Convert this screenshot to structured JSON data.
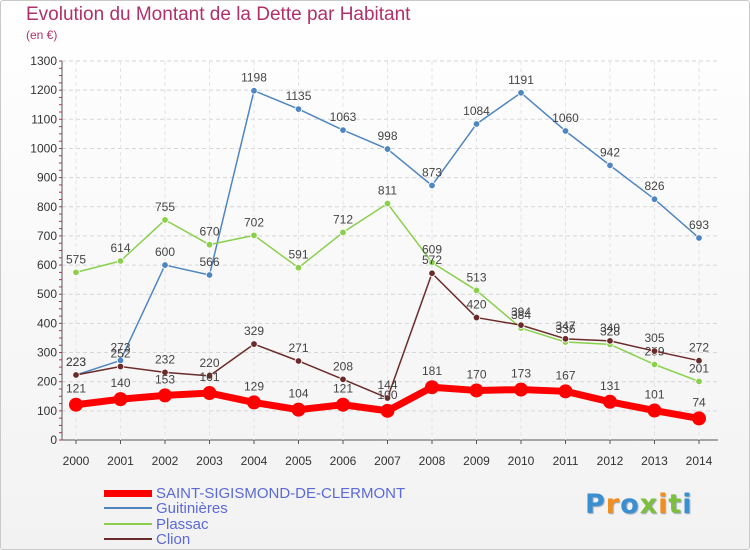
{
  "chart_data": {
    "type": "line",
    "title": "Evolution du Montant de la Dette par Habitant",
    "unit_label": "(en €)",
    "xlabel": "",
    "ylabel": "",
    "ylim": [
      0,
      1300
    ],
    "y_ticks": [
      0,
      100,
      200,
      300,
      400,
      500,
      600,
      700,
      800,
      900,
      1000,
      1100,
      1200,
      1300
    ],
    "categories": [
      "2000",
      "2001",
      "2002",
      "2003",
      "2004",
      "2005",
      "2006",
      "2007",
      "2008",
      "2009",
      "2010",
      "2011",
      "2012",
      "2013",
      "2014"
    ],
    "grid": true,
    "legend_position": "bottom-left",
    "series": [
      {
        "name": "Guitinières",
        "color": "#4f86c0",
        "values": [
          223,
          273,
          600,
          566,
          1198,
          1135,
          1063,
          998,
          873,
          1084,
          1191,
          1060,
          942,
          826,
          693
        ]
      },
      {
        "name": "Plassac",
        "color": "#8ad04c",
        "values": [
          575,
          614,
          755,
          670,
          702,
          591,
          712,
          811,
          609,
          513,
          384,
          336,
          328,
          259,
          201
        ]
      },
      {
        "name": "Clion",
        "color": "#6b2b2b",
        "values": [
          223,
          252,
          232,
          220,
          329,
          271,
          208,
          144,
          572,
          420,
          394,
          347,
          340,
          305,
          272
        ]
      },
      {
        "name": "SAINT-SIGISMOND-DE-CLERMONT",
        "color": "#ff0000",
        "values": [
          121,
          140,
          153,
          161,
          129,
          104,
          121,
          100,
          181,
          170,
          173,
          167,
          131,
          101,
          74
        ]
      }
    ]
  },
  "legend": {
    "items": [
      {
        "label": "SAINT-SIGISMOND-DE-CLERMONT",
        "color": "#ff0000"
      },
      {
        "label": "Guitinières",
        "color": "#4f86c0"
      },
      {
        "label": "Plassac",
        "color": "#8ad04c"
      },
      {
        "label": "Clion",
        "color": "#6b2b2b"
      }
    ]
  },
  "logo": {
    "text": "Proxiti",
    "letter_colors": [
      "#3a8fd0",
      "#ef8f1f",
      "#3a8fd0",
      "#7cbf3a",
      "#ef8f1f",
      "#7cbf3a",
      "#3a8fd0"
    ]
  }
}
